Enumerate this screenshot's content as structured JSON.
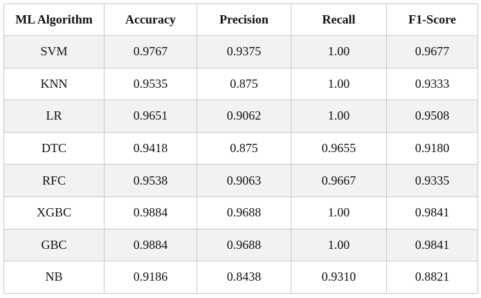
{
  "table": {
    "header": [
      "ML Algorithm",
      "Accuracy",
      "Precision",
      "Recall",
      "F1-Score"
    ],
    "rows": [
      [
        "SVM",
        "0.9767",
        "0.9375",
        "1.00",
        "0.9677"
      ],
      [
        "KNN",
        "0.9535",
        "0.875",
        "1.00",
        "0.9333"
      ],
      [
        "LR",
        "0.9651",
        "0.9062",
        "1.00",
        "0.9508"
      ],
      [
        "DTC",
        "0.9418",
        "0.875",
        "0.9655",
        "0.9180"
      ],
      [
        "RFC",
        "0.9538",
        "0.9063",
        "0.9667",
        "0.9335"
      ],
      [
        "XGBC",
        "0.9884",
        "0.9688",
        "1.00",
        "0.9841"
      ],
      [
        "GBC",
        "0.9884",
        "0.9688",
        "1.00",
        "0.9841"
      ],
      [
        "NB",
        "0.9186",
        "0.8438",
        "0.9310",
        "0.8821"
      ]
    ]
  }
}
